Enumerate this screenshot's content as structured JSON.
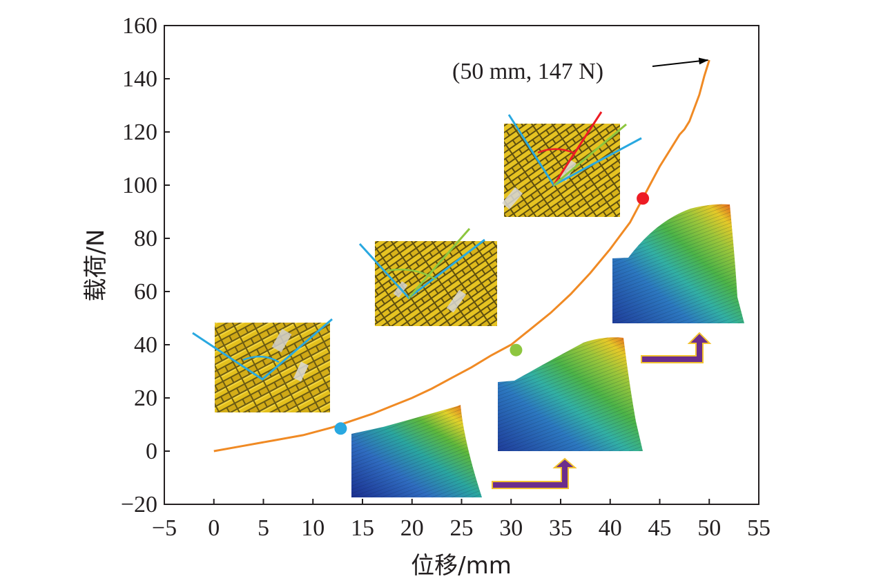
{
  "chart_data": {
    "type": "line",
    "xlabel": "位移/mm",
    "ylabel": "载荷/N",
    "xlim": [
      -5,
      55
    ],
    "ylim": [
      -20,
      160
    ],
    "xticks": [
      -5,
      0,
      5,
      10,
      15,
      20,
      25,
      30,
      35,
      40,
      45,
      50,
      55
    ],
    "yticks": [
      -20,
      0,
      20,
      40,
      60,
      80,
      100,
      120,
      140,
      160
    ],
    "grid": false,
    "series": [
      {
        "color": "#f08a24",
        "x": [
          0,
          3,
          6,
          9,
          12,
          14,
          16,
          18,
          20,
          22,
          24,
          26,
          28,
          30,
          32,
          34,
          36,
          38,
          40,
          42,
          44,
          45,
          46,
          47,
          47.5,
          48,
          48.5,
          49,
          49.5,
          50
        ],
        "y": [
          0,
          2,
          4,
          6,
          9,
          11.5,
          14,
          17,
          20,
          23.5,
          27.5,
          31.5,
          36,
          40,
          46,
          52,
          59,
          67,
          76,
          86,
          100,
          107,
          113,
          119,
          121,
          124,
          129,
          134,
          141,
          147
        ]
      }
    ],
    "markers": [
      {
        "x": 12.8,
        "y": 8.5,
        "color": "#29a8e0"
      },
      {
        "x": 30.5,
        "y": 38,
        "color": "#8dc63f"
      },
      {
        "x": 43.3,
        "y": 95,
        "color": "#ed1c24"
      }
    ],
    "annotations": [
      {
        "text": "(50 mm, 147  N)",
        "x": 50,
        "y": 147
      }
    ],
    "colors": {
      "curve": "#f08a24",
      "arrow": "#6b2d8c",
      "axis": "#231f20"
    }
  }
}
